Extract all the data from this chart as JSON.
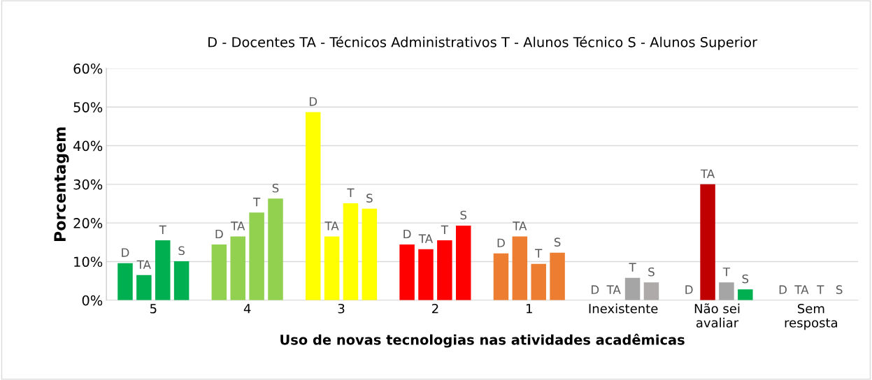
{
  "chart_data": {
    "type": "bar",
    "title": "D - Docentes TA - Técnicos Administrativos T - Alunos Técnico S - Alunos Superior",
    "xlabel": "Uso de novas tecnologias nas atividades acadêmicas",
    "ylabel": "Porcentagem",
    "categories": [
      "5",
      "4",
      "3",
      "2",
      "1",
      "Inexistente",
      "Não sei\navaliar",
      "Sem\nresposta"
    ],
    "series": [
      {
        "name": "D",
        "colors": [
          "#00b050",
          "#92d050",
          "#ffff00",
          "#ff0000",
          "#ed7d31",
          "#a5a5a5",
          "#a5a5a5",
          "#a5a5a5"
        ],
        "values": [
          9.6,
          14.4,
          48.7,
          14.4,
          12.1,
          0,
          0,
          0
        ]
      },
      {
        "name": "TA",
        "colors": [
          "#00b050",
          "#92d050",
          "#ffff00",
          "#ff0000",
          "#ed7d31",
          "#a5a5a5",
          "#c00000",
          "#a5a5a5"
        ],
        "values": [
          6.5,
          16.5,
          16.5,
          13.2,
          16.5,
          0,
          30,
          0
        ]
      },
      {
        "name": "T",
        "colors": [
          "#00b050",
          "#92d050",
          "#ffff00",
          "#ff0000",
          "#ed7d31",
          "#a5a5a5",
          "#a5a5a5",
          "#a5a5a5"
        ],
        "values": [
          15.5,
          22.7,
          25.1,
          15.5,
          9.4,
          5.8,
          4.6,
          0
        ]
      },
      {
        "name": "S",
        "colors": [
          "#00b050",
          "#92d050",
          "#ffff00",
          "#ff0000",
          "#ed7d31",
          "#aeaaaa",
          "#00b050",
          "#aeaaaa"
        ],
        "values": [
          10.1,
          26.3,
          23.7,
          19.3,
          12.3,
          4.6,
          2.8,
          0
        ]
      }
    ],
    "ylim": [
      0,
      60
    ],
    "yticks": [
      {
        "value": 0,
        "label": "0%"
      },
      {
        "value": 10,
        "label": "10%"
      },
      {
        "value": 20,
        "label": "20%"
      },
      {
        "value": 30,
        "label": "30%"
      },
      {
        "value": 40,
        "label": "40%"
      },
      {
        "value": 50,
        "label": "50%"
      },
      {
        "value": 60,
        "label": "60%"
      }
    ],
    "grid": "y",
    "legend": false
  }
}
